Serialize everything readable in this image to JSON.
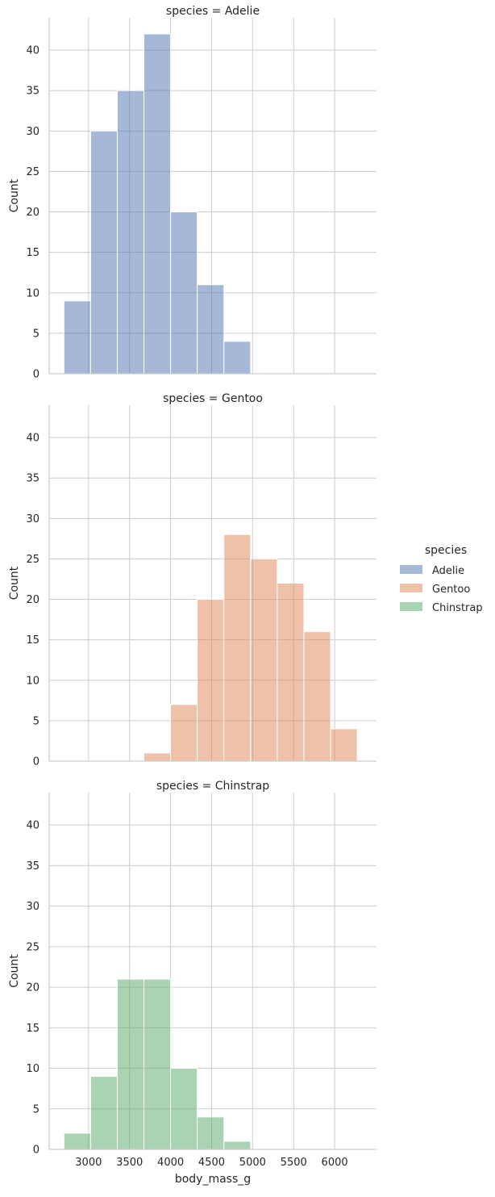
{
  "chart_data": {
    "type": "bar",
    "xlabel": "body_mass_g",
    "ylabel": "Count",
    "xlim": [
      2520,
      6510
    ],
    "ylim": [
      0,
      44
    ],
    "grid": true,
    "x_ticks": [
      3000,
      3500,
      4000,
      4500,
      5000,
      5500,
      6000
    ],
    "y_ticks": [
      0,
      5,
      10,
      15,
      20,
      25,
      30,
      35,
      40
    ],
    "bin_edges": [
      2700,
      3025,
      3350,
      3675,
      4000,
      4325,
      4650,
      4975,
      5300,
      5625,
      5950,
      6275
    ],
    "legend": {
      "title": "species",
      "placement": "right",
      "entries": [
        "Adelie",
        "Gentoo",
        "Chinstrap"
      ]
    },
    "colors": {
      "Adelie": "#4c72b0",
      "Gentoo": "#dd8452",
      "Chinstrap": "#55a868"
    },
    "facets": [
      {
        "title": "species = Adelie",
        "series": "Adelie",
        "values": [
          9,
          30,
          35,
          42,
          20,
          11,
          4,
          0,
          0,
          0,
          0
        ]
      },
      {
        "title": "species = Gentoo",
        "series": "Gentoo",
        "values": [
          0,
          0,
          0,
          1,
          7,
          20,
          28,
          25,
          22,
          16,
          4
        ]
      },
      {
        "title": "species = Chinstrap",
        "series": "Chinstrap",
        "values": [
          2,
          9,
          21,
          21,
          10,
          4,
          1,
          0,
          0,
          0,
          0
        ]
      }
    ]
  }
}
